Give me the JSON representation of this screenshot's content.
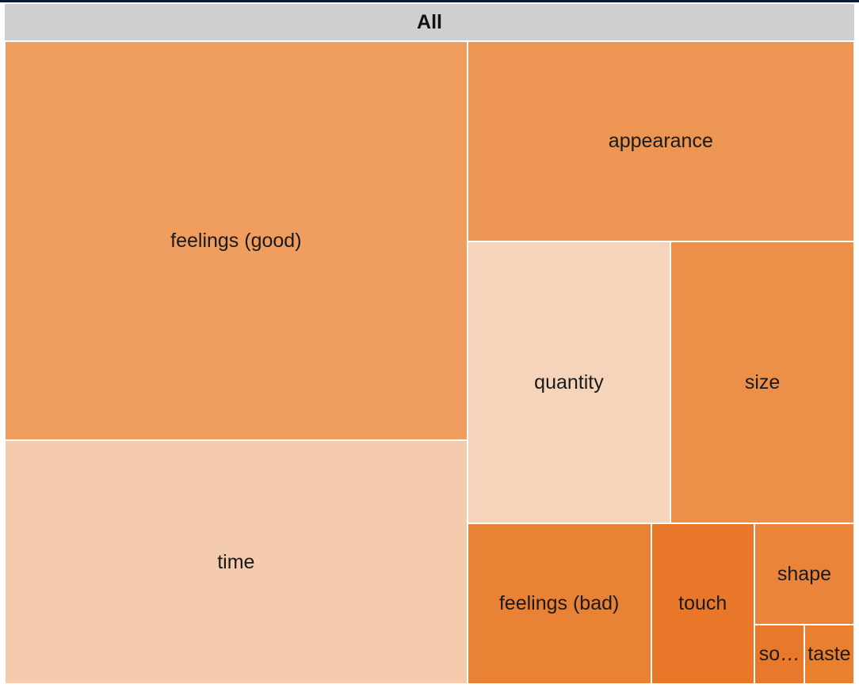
{
  "chart_data": {
    "type": "treemap",
    "root_label": "All",
    "items": [
      {
        "label": "feelings (good)",
        "value": 100,
        "color": "#ef9e60"
      },
      {
        "label": "time",
        "value": 61,
        "color": "#f5cbad"
      },
      {
        "label": "appearance",
        "value": 42,
        "color": "#ed9552"
      },
      {
        "label": "quantity",
        "value": 31,
        "color": "#f6d4bb"
      },
      {
        "label": "size",
        "value": 28,
        "color": "#ec8f48"
      },
      {
        "label": "feelings (bad)",
        "value": 16,
        "color": "#e98234"
      },
      {
        "label": "touch",
        "value": 9,
        "color": "#e8772a"
      },
      {
        "label": "shape",
        "value": 5.5,
        "color": "#e9843a"
      },
      {
        "label": "so…",
        "value": 1.6,
        "color": "#e8792c"
      },
      {
        "label": "taste",
        "value": 1.6,
        "color": "#e8802f"
      }
    ]
  }
}
